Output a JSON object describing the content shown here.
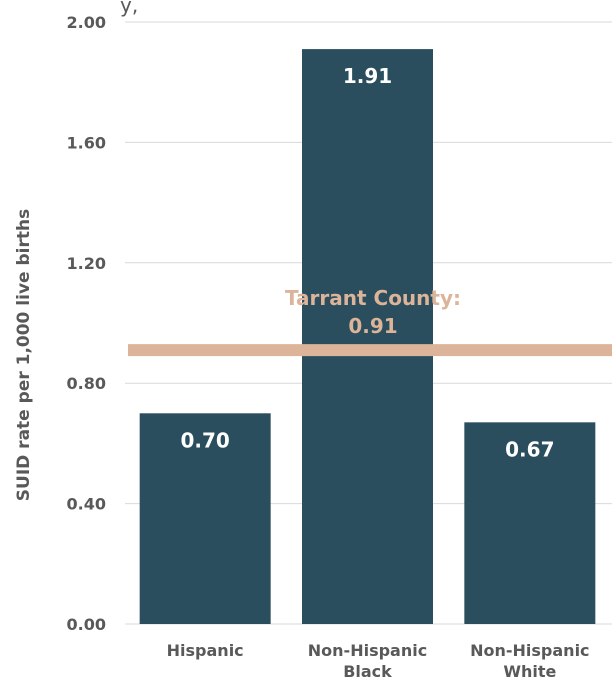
{
  "chart_data": {
    "type": "bar",
    "categories": [
      [
        "Hispanic"
      ],
      [
        "Non-Hispanic",
        "Black"
      ],
      [
        "Non-Hispanic",
        "White"
      ]
    ],
    "values": [
      0.7,
      1.91,
      0.67
    ],
    "data_labels": [
      "0.70",
      "1.91",
      "0.67"
    ],
    "ylabel": "SUID rate per 1,000 live births",
    "ylim": [
      0,
      2
    ],
    "yticks": [
      "0.00",
      "0.40",
      "0.80",
      "1.20",
      "1.60",
      "2.00"
    ],
    "grid": true,
    "reference_line": {
      "value": 0.91,
      "label_lines": [
        "Tarrant County:",
        "0.91"
      ],
      "color": "#dbb499"
    },
    "bar_color": "#2b4e5e",
    "top_fragment": "y,"
  }
}
